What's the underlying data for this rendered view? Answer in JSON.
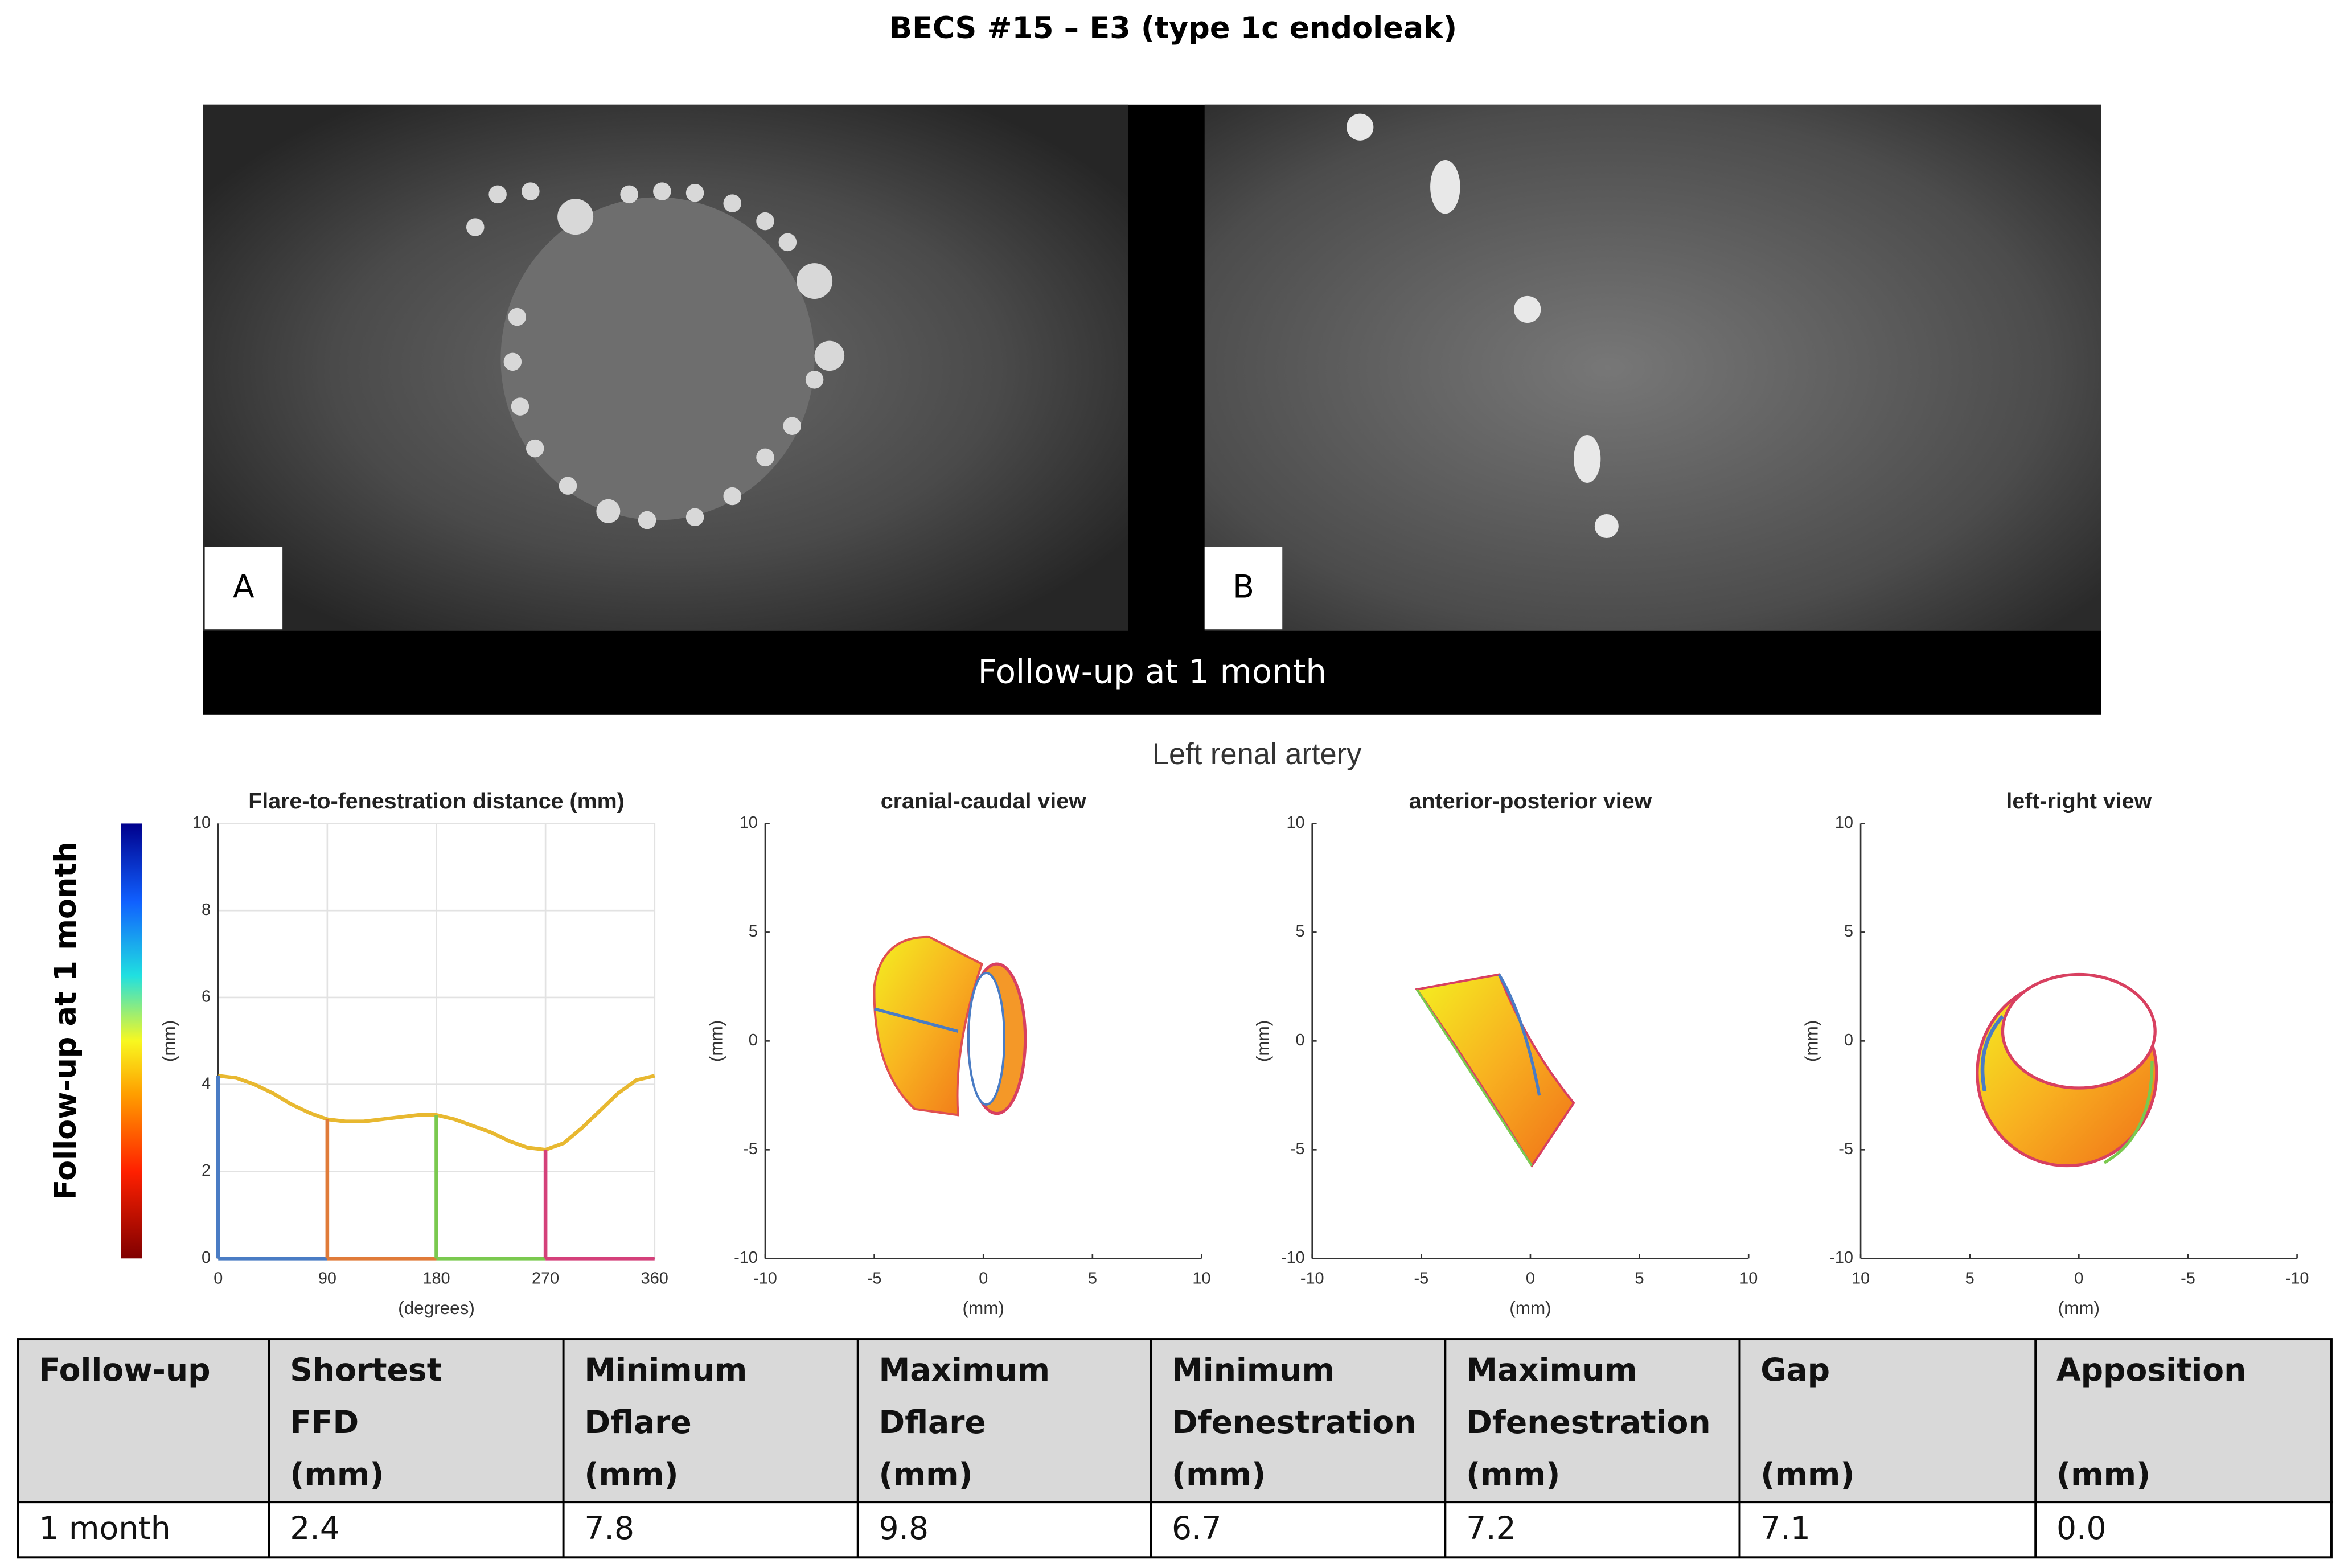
{
  "title": "BECS #15 – E3 (type 1c endoleak)",
  "panels": {
    "labels": [
      "A",
      "B"
    ],
    "caption": "Follow-up at 1 month"
  },
  "section_title": "Left renal artery",
  "colorbar_label": "Follow-up at 1 month",
  "chart_data": [
    {
      "type": "line",
      "title": "Flare-to-fenestration distance (mm)",
      "xlabel": "(degrees)",
      "ylabel": "(mm)",
      "x": [
        0,
        15,
        30,
        45,
        60,
        75,
        90,
        105,
        120,
        135,
        150,
        165,
        180,
        195,
        210,
        225,
        240,
        255,
        270,
        285,
        300,
        315,
        330,
        345,
        360
      ],
      "values": [
        4.2,
        4.15,
        4.0,
        3.8,
        3.55,
        3.35,
        3.2,
        3.15,
        3.15,
        3.2,
        3.25,
        3.3,
        3.3,
        3.2,
        3.05,
        2.9,
        2.7,
        2.55,
        2.5,
        2.65,
        3.0,
        3.4,
        3.8,
        4.1,
        4.2
      ],
      "color": "#e8b830",
      "xlim": [
        0,
        360
      ],
      "ylim": [
        0,
        10
      ],
      "xticks": [
        0,
        90,
        180,
        270,
        360
      ],
      "yticks": [
        0,
        2,
        4,
        6,
        8,
        10
      ],
      "grid": true,
      "markers": {
        "x": [
          0,
          90,
          180,
          270
        ],
        "colors": [
          "#4a7cc4",
          "#e07b39",
          "#7ac94f",
          "#d4407a"
        ]
      }
    },
    {
      "type": "view",
      "title": "cranial-caudal view",
      "xlabel": "(mm)",
      "ylabel": "(mm)",
      "xlim": [
        -10,
        10
      ],
      "ylim": [
        -10,
        10
      ],
      "xticks": [
        -10,
        -5,
        0,
        5,
        10
      ],
      "yticks": [
        -10,
        -5,
        0,
        5,
        10
      ]
    },
    {
      "type": "view",
      "title": "anterior-posterior view",
      "xlabel": "(mm)",
      "ylabel": "(mm)",
      "xlim": [
        -10,
        10
      ],
      "ylim": [
        -10,
        10
      ],
      "xticks": [
        -10,
        -5,
        0,
        5,
        10
      ],
      "yticks": [
        -10,
        -5,
        0,
        5,
        10
      ]
    },
    {
      "type": "view",
      "title": "left-right view",
      "xlabel": "(mm)",
      "ylabel": "(mm)",
      "xlim": [
        10,
        -10
      ],
      "ylim": [
        -10,
        10
      ],
      "xticks": [
        10,
        5,
        0,
        -5,
        -10
      ],
      "yticks": [
        -10,
        -5,
        0,
        5,
        10
      ]
    }
  ],
  "table": {
    "header": [
      [
        "Follow-up"
      ],
      [
        "Shortest",
        "FFD",
        "(mm)"
      ],
      [
        "Minimum",
        "Dflare",
        "(mm)"
      ],
      [
        "Maximum",
        "Dflare",
        "(mm)"
      ],
      [
        "Minimum",
        "Dfenestration",
        "(mm)"
      ],
      [
        "Maximum",
        "Dfenestration",
        "(mm)"
      ],
      [
        "Gap",
        "(mm)"
      ],
      [
        "Apposition",
        "(mm)"
      ]
    ],
    "rows": [
      [
        "1 month",
        "2.4",
        "7.8",
        "9.8",
        "6.7",
        "7.2",
        "7.1",
        "0.0"
      ]
    ]
  }
}
